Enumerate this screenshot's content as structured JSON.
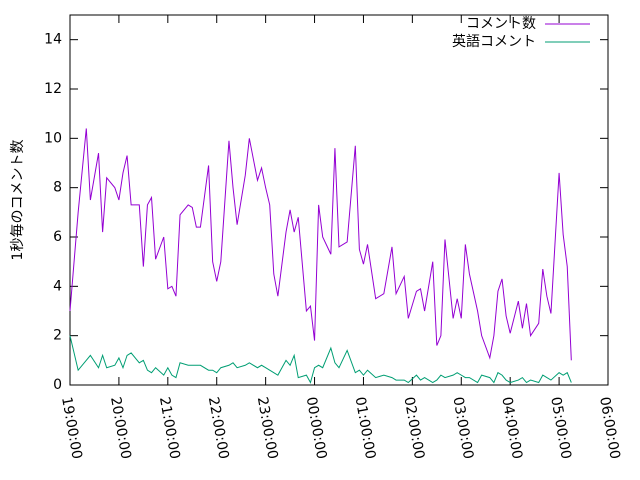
{
  "chart_data": {
    "type": "line",
    "ylabel": "1秒毎のコメント数",
    "x": [
      0,
      10,
      20,
      25,
      35,
      40,
      45,
      55,
      60,
      65,
      70,
      75,
      85,
      90,
      95,
      100,
      105,
      115,
      120,
      125,
      130,
      135,
      145,
      150,
      155,
      160,
      170,
      175,
      180,
      185,
      195,
      200,
      205,
      215,
      220,
      230,
      235,
      240,
      245,
      250,
      255,
      265,
      270,
      275,
      280,
      290,
      295,
      300,
      305,
      310,
      320,
      325,
      330,
      340,
      350,
      355,
      360,
      365,
      375,
      385,
      395,
      400,
      410,
      415,
      425,
      430,
      435,
      445,
      450,
      455,
      460,
      470,
      475,
      480,
      485,
      490,
      500,
      505,
      515,
      520,
      525,
      530,
      535,
      540,
      550,
      555,
      560,
      565,
      575,
      580,
      585,
      590,
      600,
      605,
      610,
      615
    ],
    "series": [
      {
        "name": "コメント数",
        "color": "#9400d3",
        "values": [
          3.0,
          7.0,
          10.4,
          7.5,
          9.4,
          6.2,
          8.4,
          8.0,
          7.5,
          8.6,
          9.3,
          7.3,
          7.3,
          4.8,
          7.3,
          7.6,
          5.1,
          6.0,
          3.9,
          4.0,
          3.6,
          6.9,
          7.3,
          7.2,
          6.4,
          6.4,
          8.9,
          5.0,
          4.2,
          5.0,
          9.9,
          8.0,
          6.5,
          8.5,
          10.0,
          8.3,
          8.8,
          8.0,
          7.3,
          4.5,
          3.6,
          6.2,
          7.1,
          6.2,
          6.8,
          3.0,
          3.2,
          1.8,
          7.3,
          6.0,
          5.3,
          9.6,
          5.6,
          5.8,
          9.7,
          5.5,
          4.9,
          5.7,
          3.5,
          3.7,
          5.6,
          3.7,
          4.4,
          2.7,
          3.8,
          3.9,
          3.0,
          5.0,
          1.6,
          2.0,
          5.9,
          2.7,
          3.5,
          2.7,
          5.7,
          4.5,
          3.0,
          2.0,
          1.1,
          2.0,
          3.8,
          4.3,
          2.8,
          2.1,
          3.4,
          2.3,
          3.3,
          2.0,
          2.5,
          4.7,
          3.6,
          2.9,
          8.6,
          6.1,
          4.8,
          1.0
        ]
      },
      {
        "name": "英語コメント",
        "color": "#009e73",
        "values": [
          2.0,
          0.6,
          1.0,
          1.2,
          0.7,
          1.2,
          0.7,
          0.8,
          1.1,
          0.7,
          1.2,
          1.3,
          0.9,
          1.0,
          0.6,
          0.5,
          0.7,
          0.4,
          0.7,
          0.4,
          0.3,
          0.9,
          0.8,
          0.8,
          0.8,
          0.8,
          0.6,
          0.6,
          0.5,
          0.7,
          0.8,
          0.9,
          0.7,
          0.8,
          0.9,
          0.7,
          0.8,
          0.7,
          0.6,
          0.5,
          0.4,
          1.0,
          0.8,
          1.2,
          0.3,
          0.4,
          0.1,
          0.7,
          0.8,
          0.7,
          1.5,
          0.9,
          0.7,
          1.4,
          0.5,
          0.6,
          0.4,
          0.6,
          0.3,
          0.4,
          0.3,
          0.2,
          0.2,
          0.1,
          0.4,
          0.2,
          0.3,
          0.1,
          0.2,
          0.4,
          0.3,
          0.4,
          0.5,
          0.4,
          0.3,
          0.3,
          0.1,
          0.4,
          0.3,
          0.1,
          0.5,
          0.4,
          0.2,
          0.1,
          0.2,
          0.3,
          0.1,
          0.2,
          0.1,
          0.4,
          0.3,
          0.2,
          0.5,
          0.4,
          0.5,
          0.1
        ]
      }
    ],
    "xlim": [
      0,
      660
    ],
    "xticks": [
      {
        "value": 0,
        "label": "19:00:00"
      },
      {
        "value": 60,
        "label": "20:00:00"
      },
      {
        "value": 120,
        "label": "21:00:00"
      },
      {
        "value": 180,
        "label": "22:00:00"
      },
      {
        "value": 240,
        "label": "23:00:00"
      },
      {
        "value": 300,
        "label": "00:00:00"
      },
      {
        "value": 360,
        "label": "01:00:00"
      },
      {
        "value": 420,
        "label": "02:00:00"
      },
      {
        "value": 480,
        "label": "03:00:00"
      },
      {
        "value": 540,
        "label": "04:00:00"
      },
      {
        "value": 600,
        "label": "05:00:00"
      },
      {
        "value": 660,
        "label": "06:00:00"
      }
    ],
    "ylim": [
      0,
      15
    ],
    "yticks": [
      0,
      2,
      4,
      6,
      8,
      10,
      12,
      14
    ],
    "grid": false,
    "legend": "top-right"
  }
}
